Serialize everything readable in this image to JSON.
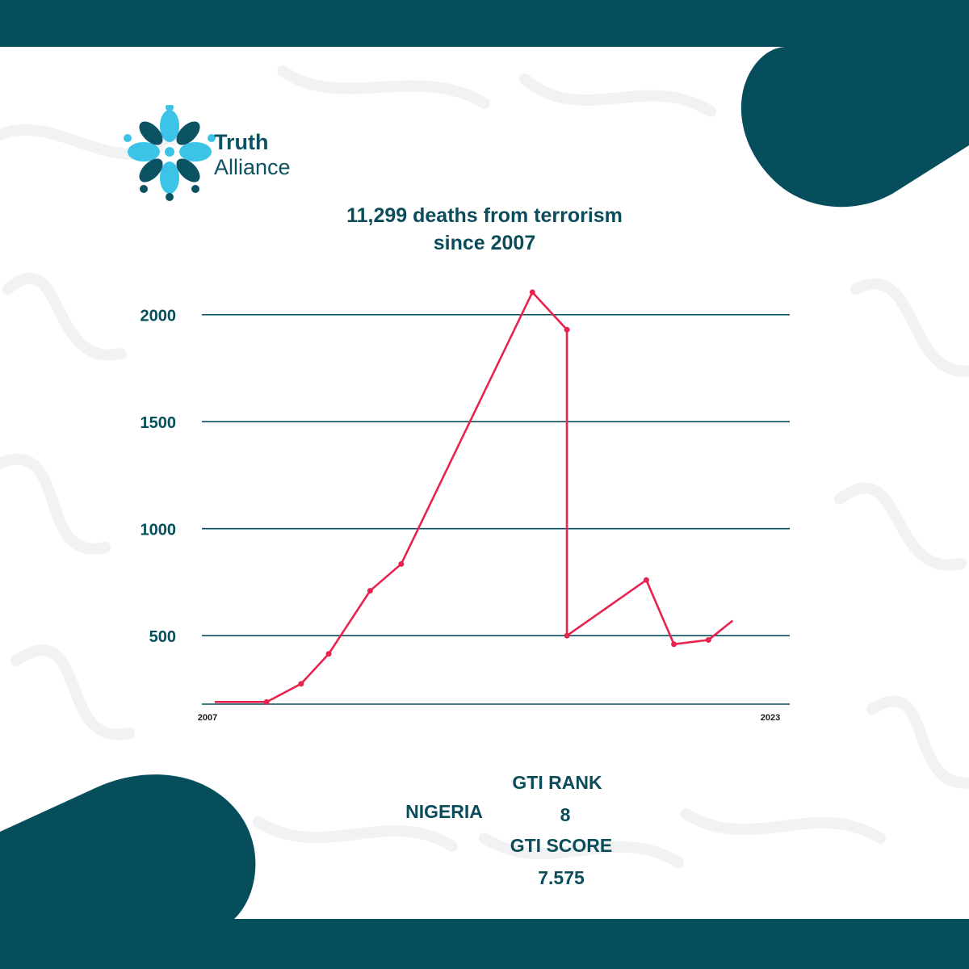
{
  "brand": {
    "name_line1": "Truth",
    "name_line2": "Alliance"
  },
  "chart_title_line1": "11,299 deaths from terrorism",
  "chart_title_line2": "since 2007",
  "colors": {
    "teal": "#064e5c",
    "line": "#e8234f",
    "logo_light": "#3cc4e8",
    "logo_dark": "#0b5262"
  },
  "chart_data": {
    "type": "line",
    "title": "11,299 deaths from terrorism since 2007",
    "x_start_label": "2007",
    "x_end_label": "2023",
    "yticks": [
      500,
      1000,
      1500,
      2000
    ],
    "ylim": [
      180,
      2150
    ],
    "grid": true,
    "series": [
      {
        "x": [
          2007,
          2008.5,
          2009.5,
          2010.3,
          2011.5,
          2012.4,
          2016.2,
          2017.2,
          2017.2,
          2019.5,
          2020.3,
          2021.3,
          2022
        ],
        "values": [
          190,
          190,
          275,
          415,
          710,
          835,
          2105,
          1930,
          500,
          760,
          460,
          480,
          570
        ]
      }
    ]
  },
  "stats": {
    "country": "NIGERIA",
    "rank_label": "GTI RANK",
    "rank_value": "8",
    "score_label": "GTI SCORE",
    "score_value": "7.575"
  }
}
